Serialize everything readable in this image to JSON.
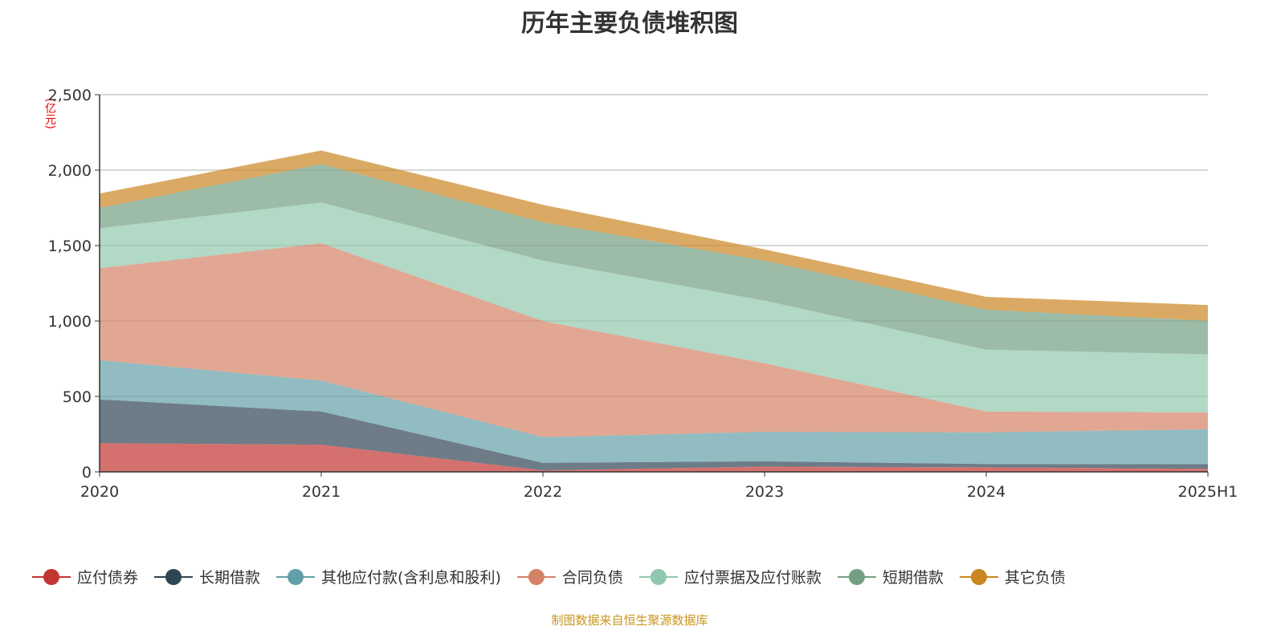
{
  "chart_data": {
    "type": "area",
    "stacked": true,
    "title": "历年主要负债堆积图",
    "ylabel": "(亿元)",
    "source": "制图数据来自恒生聚源数据库",
    "categories": [
      "2020",
      "2021",
      "2022",
      "2023",
      "2024",
      "2025H1"
    ],
    "ylim": [
      0,
      2500
    ],
    "yticks": [
      0,
      500,
      1000,
      1500,
      2000,
      2500
    ],
    "ytick_labels": [
      "0",
      "500",
      "1,000",
      "1,500",
      "2,000",
      "2,500"
    ],
    "grid": true,
    "legend_position": "bottom",
    "series": [
      {
        "name": "应付债券",
        "color": "#c23531",
        "values": [
          190,
          180,
          10,
          35,
          30,
          20
        ]
      },
      {
        "name": "长期借款",
        "color": "#2f4554",
        "values": [
          290,
          220,
          50,
          35,
          22,
          32
        ]
      },
      {
        "name": "其他应付款(含利息和股利)",
        "color": "#61a0a8",
        "values": [
          260,
          205,
          170,
          195,
          210,
          230
        ]
      },
      {
        "name": "合同负债",
        "color": "#d48265",
        "values": [
          610,
          910,
          770,
          455,
          138,
          112
        ]
      },
      {
        "name": "应付票据及应付账款",
        "color": "#91c7ae",
        "values": [
          265,
          270,
          400,
          415,
          410,
          385
        ]
      },
      {
        "name": "短期借款",
        "color": "#749f83",
        "values": [
          135,
          255,
          255,
          265,
          265,
          222
        ]
      },
      {
        "name": "其它负债",
        "color": "#ca8622",
        "values": [
          95,
          90,
          115,
          75,
          85,
          105
        ]
      }
    ]
  }
}
